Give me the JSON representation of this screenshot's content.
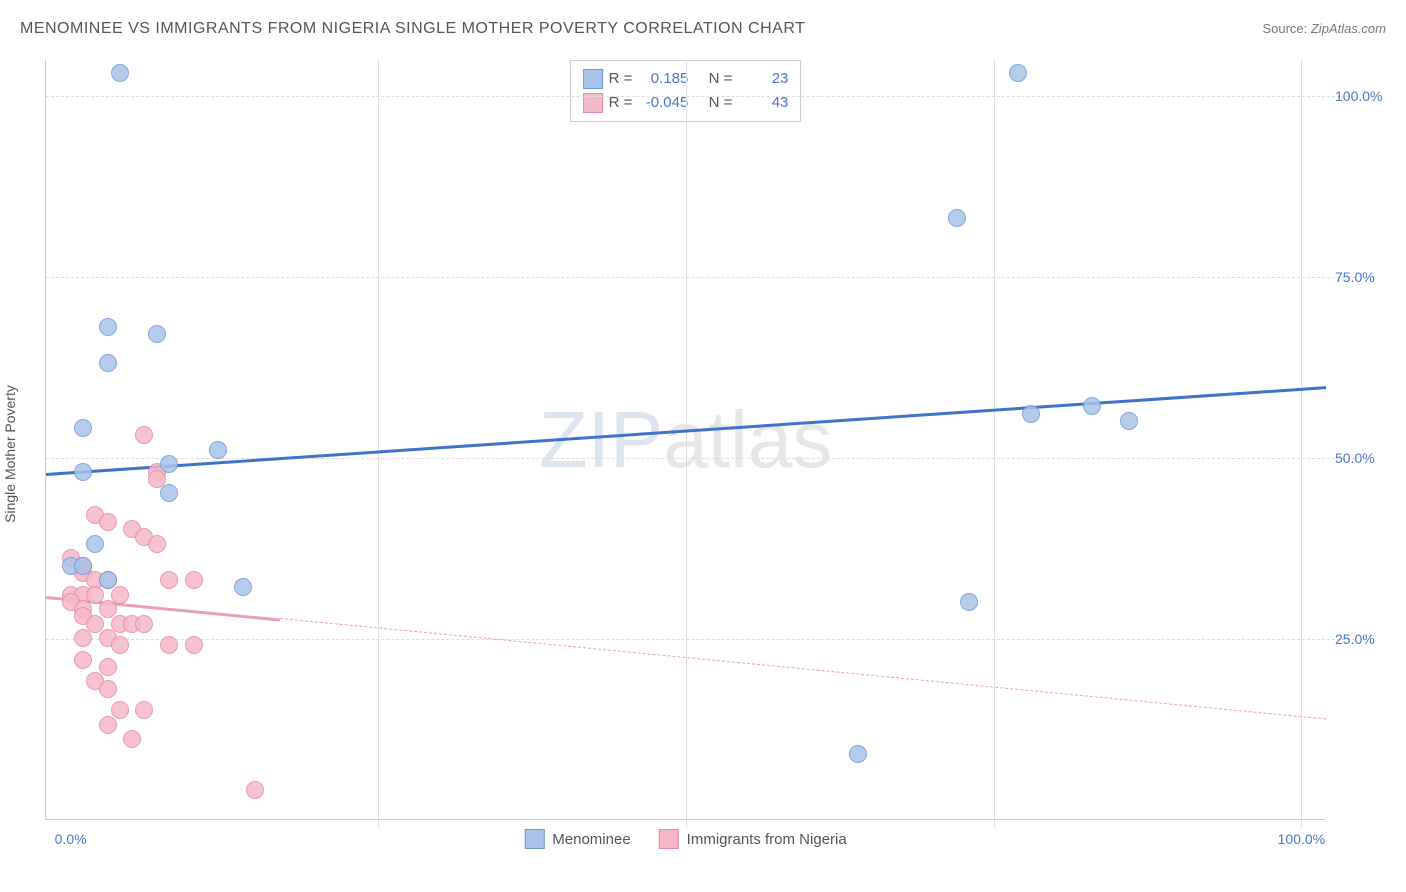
{
  "header": {
    "title": "MENOMINEE VS IMMIGRANTS FROM NIGERIA SINGLE MOTHER POVERTY CORRELATION CHART",
    "source_label": "Source: ",
    "source_value": "ZipAtlas.com"
  },
  "y_axis": {
    "label": "Single Mother Poverty",
    "ticks": [
      {
        "v": 25,
        "label": "25.0%"
      },
      {
        "v": 50,
        "label": "50.0%"
      },
      {
        "v": 75,
        "label": "75.0%"
      },
      {
        "v": 100,
        "label": "100.0%"
      }
    ],
    "min": 0,
    "max": 105
  },
  "x_axis": {
    "ticks": [
      {
        "v": 0,
        "label": "0.0%"
      },
      {
        "v": 25,
        "label": ""
      },
      {
        "v": 50,
        "label": ""
      },
      {
        "v": 75,
        "label": ""
      },
      {
        "v": 100,
        "label": "100.0%"
      }
    ],
    "min": -2,
    "max": 102
  },
  "watermark": {
    "z": "ZIP",
    "rest": "atlas"
  },
  "series": [
    {
      "key": "menominee",
      "name": "Menominee",
      "fill": "#a9c4ea",
      "stroke": "#6f9bd8",
      "marker_r": 9,
      "R": "0.185",
      "N": "23",
      "trend": {
        "y_at_xmin": 48,
        "y_at_xmax": 60,
        "color": "#3f73c9"
      },
      "points": [
        {
          "x": 4,
          "y": 103
        },
        {
          "x": 77,
          "y": 103
        },
        {
          "x": 72,
          "y": 83
        },
        {
          "x": 3,
          "y": 68
        },
        {
          "x": 7,
          "y": 67
        },
        {
          "x": 3,
          "y": 63
        },
        {
          "x": 1,
          "y": 54
        },
        {
          "x": 78,
          "y": 56
        },
        {
          "x": 86,
          "y": 55
        },
        {
          "x": 83,
          "y": 57
        },
        {
          "x": 12,
          "y": 51
        },
        {
          "x": 1,
          "y": 48
        },
        {
          "x": 8,
          "y": 49
        },
        {
          "x": 8,
          "y": 45
        },
        {
          "x": 2,
          "y": 38
        },
        {
          "x": 0,
          "y": 35
        },
        {
          "x": 1,
          "y": 35
        },
        {
          "x": 3,
          "y": 33
        },
        {
          "x": 14,
          "y": 32
        },
        {
          "x": 73,
          "y": 30
        },
        {
          "x": 64,
          "y": 9
        }
      ]
    },
    {
      "key": "nigeria",
      "name": "Immigrants from Nigeria",
      "fill": "#f5b8c8",
      "stroke": "#e88aa5",
      "marker_r": 9,
      "R": "-0.045",
      "N": "43",
      "trend": {
        "y_at_xmin": 31,
        "y_at_xmax": 14,
        "color": "#e9a0b5"
      },
      "points": [
        {
          "x": 6,
          "y": 53
        },
        {
          "x": 7,
          "y": 48
        },
        {
          "x": 7,
          "y": 47
        },
        {
          "x": 2,
          "y": 42
        },
        {
          "x": 3,
          "y": 41
        },
        {
          "x": 5,
          "y": 40
        },
        {
          "x": 6,
          "y": 39
        },
        {
          "x": 7,
          "y": 38
        },
        {
          "x": 0,
          "y": 36
        },
        {
          "x": 1,
          "y": 35
        },
        {
          "x": 1,
          "y": 34
        },
        {
          "x": 2,
          "y": 33
        },
        {
          "x": 3,
          "y": 33
        },
        {
          "x": 8,
          "y": 33
        },
        {
          "x": 10,
          "y": 33
        },
        {
          "x": 0,
          "y": 31
        },
        {
          "x": 1,
          "y": 31
        },
        {
          "x": 2,
          "y": 31
        },
        {
          "x": 4,
          "y": 31
        },
        {
          "x": 0,
          "y": 30
        },
        {
          "x": 1,
          "y": 29
        },
        {
          "x": 3,
          "y": 29
        },
        {
          "x": 1,
          "y": 28
        },
        {
          "x": 2,
          "y": 27
        },
        {
          "x": 4,
          "y": 27
        },
        {
          "x": 5,
          "y": 27
        },
        {
          "x": 6,
          "y": 27
        },
        {
          "x": 1,
          "y": 25
        },
        {
          "x": 3,
          "y": 25
        },
        {
          "x": 4,
          "y": 24
        },
        {
          "x": 8,
          "y": 24
        },
        {
          "x": 10,
          "y": 24
        },
        {
          "x": 1,
          "y": 22
        },
        {
          "x": 3,
          "y": 21
        },
        {
          "x": 2,
          "y": 19
        },
        {
          "x": 3,
          "y": 18
        },
        {
          "x": 4,
          "y": 15
        },
        {
          "x": 6,
          "y": 15
        },
        {
          "x": 3,
          "y": 13
        },
        {
          "x": 5,
          "y": 11
        },
        {
          "x": 15,
          "y": 4
        }
      ]
    }
  ],
  "stats_box": {
    "R_label": "R =",
    "N_label": "N ="
  },
  "colors": {
    "axis_label": "#4a76d0",
    "grid": "#dddddd",
    "background": "#ffffff"
  }
}
